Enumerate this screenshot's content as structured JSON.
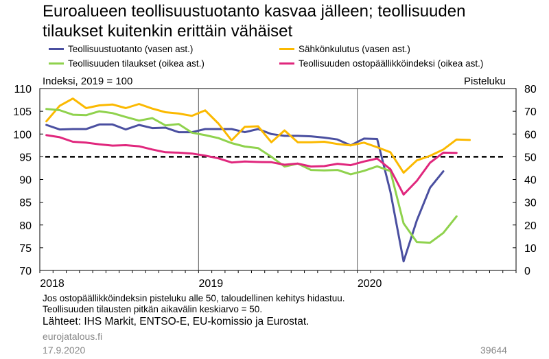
{
  "header": {
    "title_line1": "Euroalueen teollisuustuotanto kasvaa jälleen; teollisuuden",
    "title_line2": "tilaukset kuitenkin erittäin vähäiset"
  },
  "axes_text": {
    "left_unit": "Indeksi, 2019 = 100",
    "right_unit": "Pisteluku"
  },
  "footer": {
    "note1": "Jos ostopäällikköindeksin pisteluku alle 50, taloudellinen kehitys hidastuu.",
    "note2": "Teollisuuden tilausten pitkän aikavälin keskiarvo = 50.",
    "sources": "Lähteet: IHS Markit, ENTSO-E, EU-komissio ja Eurostat.",
    "site": "eurojatalous.fi",
    "date": "17.9.2020",
    "chart_id": "39644"
  },
  "chart_data": {
    "type": "line",
    "title": "Euroalueen teollisuustuotanto kasvaa jälleen; teollisuuden tilaukset kuitenkin erittäin vähäiset",
    "x_ticks": [
      "2018",
      "2019",
      "2020"
    ],
    "x_range": [
      "2018-01",
      "2020-12"
    ],
    "left_axis": {
      "label": "Indeksi, 2019 = 100",
      "ylim": [
        70,
        110
      ],
      "ticks": [
        70,
        75,
        80,
        85,
        90,
        95,
        100,
        105,
        110
      ]
    },
    "right_axis": {
      "label": "Pisteluku",
      "ylim": [
        0,
        80
      ],
      "ticks": [
        0,
        10,
        20,
        30,
        40,
        50,
        60,
        70,
        80
      ]
    },
    "reference_line": {
      "axis": "right",
      "value": 50,
      "style": "dashed"
    },
    "grid": "vertical lines at year starts",
    "legend_placement": "top",
    "series": [
      {
        "name": "Teollisuustuotanto (vasen ast.)",
        "axis": "left",
        "color": "#4a4fa0",
        "start": "2018-01",
        "values": [
          102.0,
          101.0,
          101.1,
          101.1,
          102.1,
          102.1,
          101.0,
          102.0,
          101.3,
          101.4,
          100.4,
          100.4,
          101.1,
          101.1,
          101.1,
          100.4,
          101.1,
          100.0,
          99.6,
          99.6,
          99.5,
          99.2,
          98.8,
          97.5,
          99.0,
          98.9,
          87.3,
          72.0,
          81.0,
          88.2,
          91.8
        ],
        "color_key": "blue"
      },
      {
        "name": "Sähkönkulutus (vasen ast.)",
        "axis": "left",
        "color": "#fbb900",
        "start": "2018-01",
        "values": [
          102.8,
          106.2,
          107.8,
          105.7,
          106.3,
          106.5,
          105.7,
          106.6,
          105.6,
          104.8,
          104.5,
          104.0,
          105.2,
          102.3,
          98.6,
          101.6,
          101.7,
          98.2,
          100.8,
          98.2,
          98.2,
          98.3,
          97.8,
          97.5,
          98.1,
          97.1,
          96.0,
          91.5,
          94.2,
          95.2,
          96.6,
          98.8,
          98.7
        ],
        "color_key": "yellow"
      },
      {
        "name": "Teollisuuden tilaukset (oikea ast.)",
        "axis": "right",
        "color": "#8fd24d",
        "start": "2018-01",
        "values": [
          71.0,
          70.5,
          68.5,
          68.3,
          70.0,
          69.2,
          67.5,
          65.9,
          67.0,
          63.8,
          64.4,
          60.6,
          59.5,
          58.2,
          56.0,
          54.5,
          53.8,
          50.0,
          45.7,
          47.0,
          44.2,
          44.0,
          44.2,
          42.3,
          43.8,
          45.8,
          43.7,
          20.7,
          12.5,
          12.2,
          16.5,
          23.8
        ],
        "color_key": "green"
      },
      {
        "name": "Teollisuuden ostopäällikköindeksi (oikea ast.)",
        "axis": "right",
        "color": "#e0277d",
        "start": "2018-01",
        "values": [
          59.5,
          58.6,
          56.6,
          56.2,
          55.5,
          54.9,
          55.1,
          54.6,
          53.2,
          52.0,
          51.8,
          51.4,
          50.5,
          49.3,
          47.5,
          47.9,
          47.7,
          47.6,
          46.5,
          47.0,
          45.7,
          45.9,
          46.9,
          46.3,
          47.9,
          49.2,
          44.5,
          33.4,
          39.4,
          47.4,
          51.8,
          51.7
        ],
        "color_key": "magenta"
      }
    ]
  }
}
